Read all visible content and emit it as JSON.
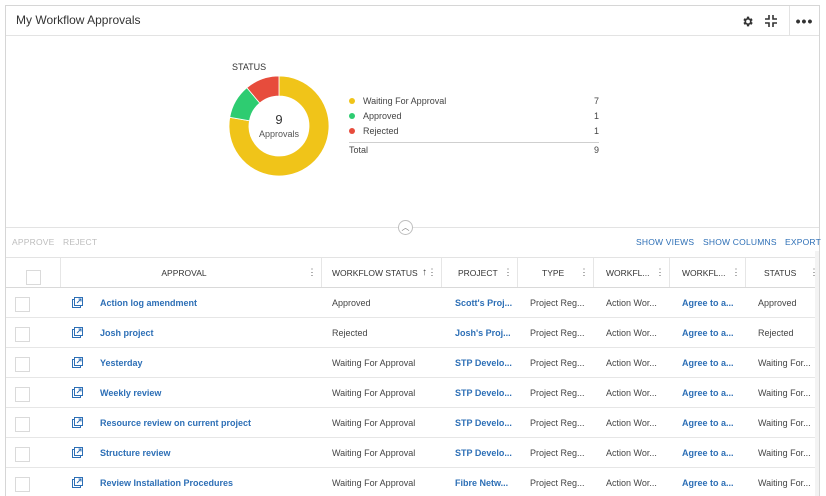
{
  "header": {
    "title": "My Workflow Approvals",
    "icons": [
      "gear-icon",
      "collapse-icon",
      "more-icon"
    ]
  },
  "chart": {
    "title": "STATUS",
    "center_value": "9",
    "center_label": "Approvals",
    "total_label": "Total",
    "total_value": "9"
  },
  "chart_data": {
    "type": "pie",
    "title": "STATUS",
    "categories": [
      "Waiting For Approval",
      "Approved",
      "Rejected"
    ],
    "values": [
      7,
      1,
      1
    ],
    "colors": [
      "#f0c419",
      "#2ecc71",
      "#e74c3c"
    ],
    "legend": "right"
  },
  "toolbar": {
    "approve": "APPROVE",
    "reject": "REJECT",
    "show_views": "SHOW VIEWS",
    "show_columns": "SHOW COLUMNS",
    "export": "EXPORT"
  },
  "columns": {
    "approval": "APPROVAL",
    "workflow_status": "WORKFLOW STATUS",
    "project": "PROJECT",
    "type": "TYPE",
    "workflow_1": "WORKFL...",
    "workflow_2": "WORKFL...",
    "status": "STATUS"
  },
  "rows": [
    {
      "approval": "Action log amendment",
      "workflow_status": "Approved",
      "project": "Scott's Proj...",
      "type": "Project Reg...",
      "workflow_1": "Action Wor...",
      "workflow_2": "Agree to a...",
      "status": "Approved"
    },
    {
      "approval": "Josh project",
      "workflow_status": "Rejected",
      "project": "Josh's Proj...",
      "type": "Project Reg...",
      "workflow_1": "Action Wor...",
      "workflow_2": "Agree to a...",
      "status": "Rejected"
    },
    {
      "approval": "Yesterday",
      "workflow_status": "Waiting For Approval",
      "project": "STP Develo...",
      "type": "Project Reg...",
      "workflow_1": "Action Wor...",
      "workflow_2": "Agree to a...",
      "status": "Waiting For..."
    },
    {
      "approval": "Weekly review",
      "workflow_status": "Waiting For Approval",
      "project": "STP Develo...",
      "type": "Project Reg...",
      "workflow_1": "Action Wor...",
      "workflow_2": "Agree to a...",
      "status": "Waiting For..."
    },
    {
      "approval": "Resource review on current project",
      "workflow_status": "Waiting For Approval",
      "project": "STP Develo...",
      "type": "Project Reg...",
      "workflow_1": "Action Wor...",
      "workflow_2": "Agree to a...",
      "status": "Waiting For..."
    },
    {
      "approval": "Structure review",
      "workflow_status": "Waiting For Approval",
      "project": "STP Develo...",
      "type": "Project Reg...",
      "workflow_1": "Action Wor...",
      "workflow_2": "Agree to a...",
      "status": "Waiting For..."
    },
    {
      "approval": "Review Installation Procedures",
      "workflow_status": "Waiting For Approval",
      "project": "Fibre Netw...",
      "type": "Project Reg...",
      "workflow_1": "Action Wor...",
      "workflow_2": "Agree to a...",
      "status": "Waiting For..."
    }
  ]
}
